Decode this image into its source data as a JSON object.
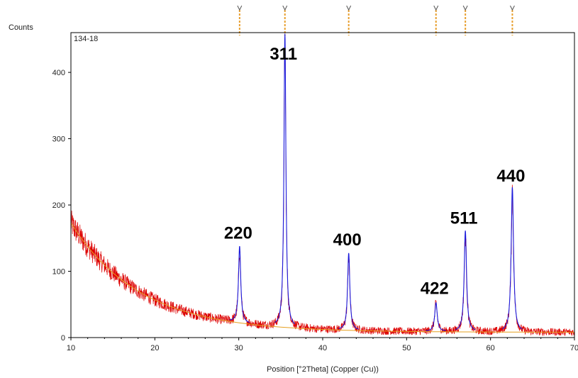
{
  "chart_data": {
    "type": "line",
    "sample_label": "134-18",
    "ylabel": "Counts",
    "xlabel": "Position [°2Theta] (Copper (Cu))",
    "xlim": [
      10,
      70
    ],
    "ylim": [
      0,
      460
    ],
    "x_ticks": [
      10,
      20,
      30,
      40,
      50,
      60,
      70
    ],
    "y_ticks": [
      0,
      100,
      200,
      300,
      400
    ],
    "grid": false,
    "colors": {
      "observed": "#dd0000",
      "calculated": "#1a1adc",
      "background": "#e6a020",
      "reference": "#e8a030",
      "frame": "#000000"
    },
    "background_curve": {
      "a": 8,
      "b": 165,
      "decay": 8.2
    },
    "peaks": [
      {
        "label": "220",
        "x": 30.1,
        "height": 112,
        "width": 0.16
      },
      {
        "label": "311",
        "x": 35.5,
        "height": 430,
        "width": 0.14
      },
      {
        "label": "400",
        "x": 43.1,
        "height": 113,
        "width": 0.16
      },
      {
        "label": "422",
        "x": 53.5,
        "height": 42,
        "width": 0.18
      },
      {
        "label": "511",
        "x": 57.0,
        "height": 148,
        "width": 0.17
      },
      {
        "label": "440",
        "x": 62.6,
        "height": 212,
        "width": 0.17
      }
    ],
    "reference_marks": [
      30.1,
      35.5,
      43.1,
      53.5,
      57.0,
      62.6
    ]
  }
}
